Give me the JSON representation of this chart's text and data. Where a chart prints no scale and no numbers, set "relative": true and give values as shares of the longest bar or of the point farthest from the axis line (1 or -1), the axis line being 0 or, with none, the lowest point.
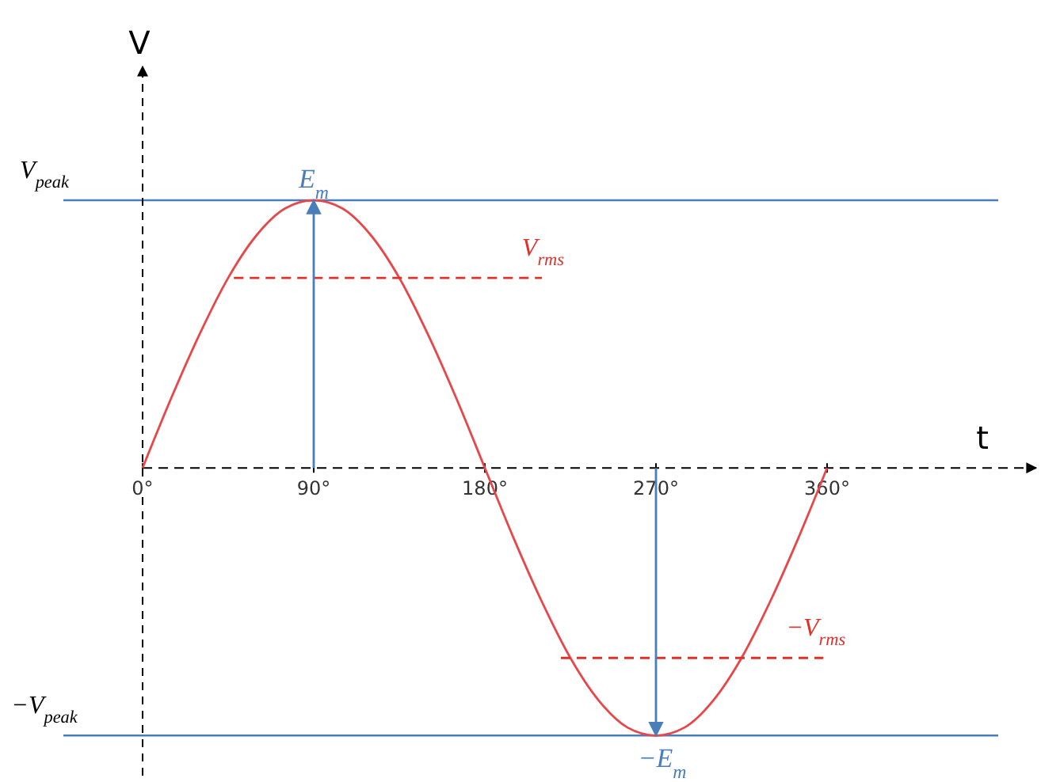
{
  "chart_data": {
    "type": "line",
    "xlabel": "t",
    "ylabel": "V",
    "x": [
      0,
      15,
      30,
      45,
      60,
      75,
      90,
      105,
      120,
      135,
      150,
      165,
      180,
      195,
      210,
      225,
      240,
      255,
      270,
      285,
      300,
      315,
      330,
      345,
      360
    ],
    "series": [
      {
        "color": "#e8474a",
        "values": [
          0,
          0.26,
          0.5,
          0.71,
          0.87,
          0.97,
          1,
          0.97,
          0.87,
          0.71,
          0.5,
          0.26,
          0,
          -0.26,
          -0.5,
          -0.71,
          -0.87,
          -0.97,
          -1,
          -0.97,
          -0.87,
          -0.71,
          -0.5,
          -0.26,
          0
        ]
      },
      {
        "name": "V$_{rms}$",
        "color": "#e0302a",
        "type": "line",
        "line_style": "dashed",
        "x": [
          48,
          210
        ],
        "values": [
          0.71,
          0.71
        ]
      },
      {
        "name": "−V$_{rms}$",
        "color": "#e0302a",
        "type": "line",
        "line_style": "dashed",
        "x": [
          220,
          358
        ],
        "values": [
          -0.71,
          -0.71
        ]
      }
    ],
    "xlim": [
      0,
      470
    ],
    "relative": true,
    "xticks": [
      {
        "value": 0,
        "label": "0°"
      },
      {
        "value": 90,
        "label": "90°"
      },
      {
        "value": 180,
        "label": "180°"
      },
      {
        "value": 270,
        "label": "270°"
      },
      {
        "value": 360,
        "label": "360°"
      }
    ],
    "ref_lines": [
      {
        "axis": "y",
        "value": 0,
        "color": "#000000",
        "line_style": "dashed"
      },
      {
        "axis": "y",
        "value": 1,
        "color": "#4a7ebb",
        "label": "V$_{peak}$"
      },
      {
        "axis": "y",
        "value": -1,
        "color": "#4a7ebb",
        "label": "−V$_{peak}$"
      }
    ],
    "annotations": [
      {
        "text": "E$_{m}$",
        "x": 90,
        "y": 1
      },
      {
        "text": "−E$_{m}$",
        "x": 270,
        "y": -1
      }
    ],
    "line_style": "solid"
  }
}
